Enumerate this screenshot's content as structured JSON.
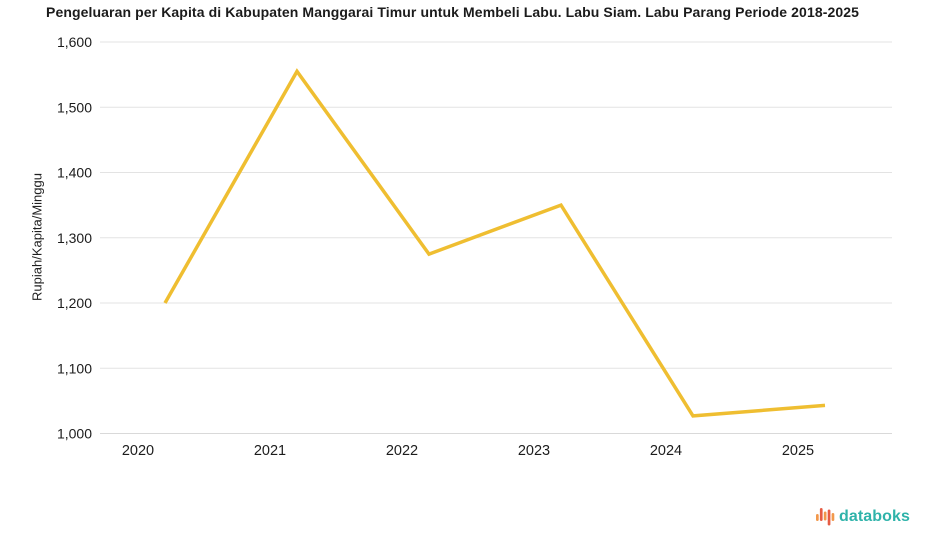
{
  "chart_data": {
    "type": "line",
    "title": "Pengeluaran per Kapita di Kabupaten Manggarai Timur untuk Membeli Labu. Labu Siam. Labu Parang Periode 2018-2025",
    "categories": [
      "2020",
      "2021",
      "2022",
      "2023",
      "2024",
      "2025"
    ],
    "values": [
      1200,
      1555,
      1275,
      1350,
      1027,
      1043
    ],
    "series_name": "Pengeluaran per Kapita",
    "xlabel": "",
    "ylabel": "Rupiah/Kapita/Minggu",
    "ylim": [
      1000,
      1600
    ],
    "ytick_step": 100,
    "grid": "horizontal-only",
    "legend": "none",
    "line_color": "#EFBE31",
    "gridline_color": "#e3e3e3",
    "axis_line_color": "#d9d9d9",
    "tick_label_color": "#1c1c1c"
  },
  "footer": {
    "brand": "databoks",
    "brand_color": "#2FB3AA",
    "logo_icon": "databoks-bars-icon",
    "logo_bar_colors": [
      "#F2984B",
      "#E65C44",
      "#F2984B",
      "#E65C44",
      "#F2984B"
    ]
  }
}
